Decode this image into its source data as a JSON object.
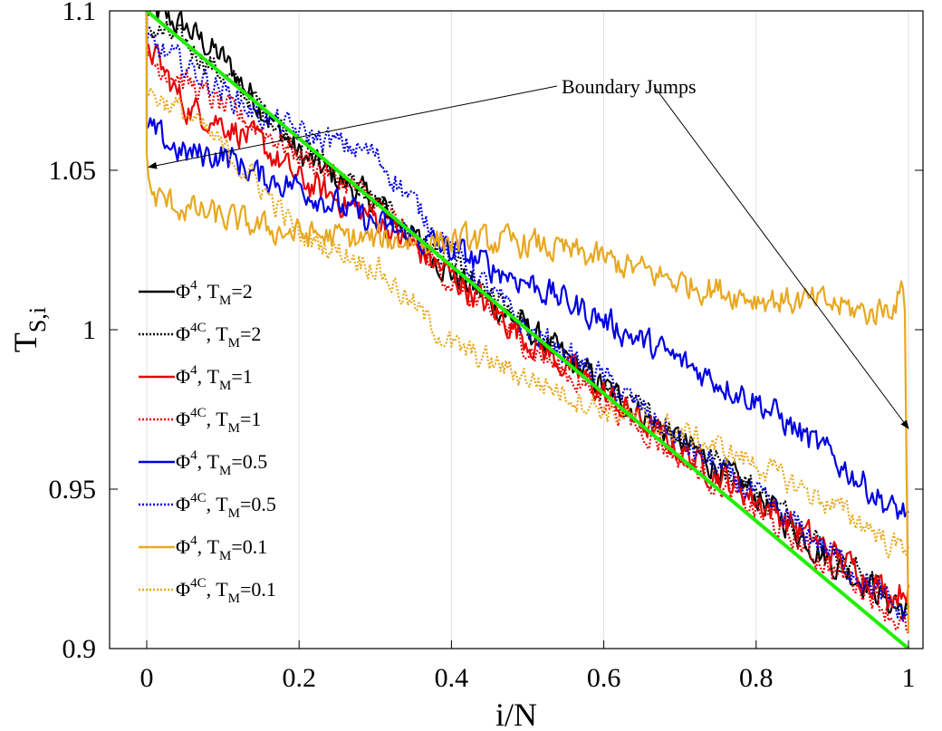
{
  "chart_data": {
    "type": "line",
    "xlabel": "i/N",
    "ylabel": {
      "main": "T",
      "sub": "S,i"
    },
    "xlim": [
      -0.05,
      1.0
    ],
    "ylim": [
      0.9,
      1.1
    ],
    "x_ticks": [
      "0",
      "0.2",
      "0.4",
      "0.6",
      "0.8",
      "1"
    ],
    "x_tick_values": [
      0,
      0.2,
      0.4,
      0.6,
      0.8,
      1.0
    ],
    "y_ticks": [
      "0.9",
      "0.95",
      "1",
      "1.05",
      "1.1"
    ],
    "y_tick_values": [
      0.9,
      0.95,
      1.0,
      1.05,
      1.1
    ],
    "grid": "vertical",
    "legend_position": "left",
    "annotation": {
      "text": "Boundary Jumps",
      "targets": [
        [
          0.0,
          1.051
        ],
        [
          1.0,
          0.969
        ]
      ]
    },
    "reference_line": {
      "color": "#22ee00",
      "x": [
        0,
        1
      ],
      "y": [
        1.1,
        0.9
      ]
    },
    "series": [
      {
        "name": "Φ4, TM=2",
        "sym": "Φ",
        "sup": "4",
        "tm": "2",
        "color": "#000000",
        "dash": "solid",
        "x": [
          0,
          0.05,
          0.1,
          0.15,
          0.2,
          0.3,
          0.4,
          0.5,
          0.6,
          0.7,
          0.8,
          0.9,
          0.95,
          0.98,
          1.0
        ],
        "y": [
          1.1,
          1.095,
          1.085,
          1.07,
          1.055,
          1.04,
          1.018,
          1.0,
          0.982,
          0.965,
          0.948,
          0.927,
          0.92,
          0.913,
          0.913
        ]
      },
      {
        "name": "Φ4C, TM=2",
        "sym": "Φ",
        "sup": "4C",
        "tm": "2",
        "color": "#000000",
        "dash": "dotted",
        "x": [
          0,
          0.05,
          0.1,
          0.15,
          0.2,
          0.3,
          0.4,
          0.5,
          0.6,
          0.7,
          0.8,
          0.9,
          0.95,
          0.98,
          1.0
        ],
        "y": [
          1.095,
          1.09,
          1.08,
          1.07,
          1.058,
          1.04,
          1.02,
          1.0,
          0.982,
          0.967,
          0.95,
          0.93,
          0.922,
          0.915,
          0.912
        ]
      },
      {
        "name": "Φ4, TM=1",
        "sym": "Φ",
        "sup": "4",
        "tm": "1",
        "color": "#e80000",
        "dash": "solid",
        "x": [
          0,
          0.05,
          0.1,
          0.15,
          0.2,
          0.3,
          0.4,
          0.5,
          0.6,
          0.7,
          0.8,
          0.9,
          0.95,
          0.98,
          1.0
        ],
        "y": [
          1.09,
          1.07,
          1.065,
          1.058,
          1.047,
          1.035,
          1.017,
          0.997,
          0.98,
          0.962,
          0.947,
          0.93,
          0.922,
          0.917,
          0.92
        ]
      },
      {
        "name": "Φ4C, TM=1",
        "sym": "Φ",
        "sup": "4C",
        "tm": "1",
        "color": "#e80000",
        "dash": "dotted",
        "x": [
          0,
          0.05,
          0.1,
          0.15,
          0.2,
          0.3,
          0.4,
          0.5,
          0.6,
          0.7,
          0.8,
          0.9,
          0.95,
          0.98,
          1.0
        ],
        "y": [
          1.085,
          1.078,
          1.07,
          1.063,
          1.055,
          1.04,
          1.015,
          0.995,
          0.978,
          0.96,
          0.943,
          0.925,
          0.918,
          0.91,
          0.905
        ]
      },
      {
        "name": "Φ4, TM=0.5",
        "sym": "Φ",
        "sup": "4",
        "tm": "0.5",
        "color": "#0000e0",
        "dash": "solid",
        "x": [
          0,
          0.05,
          0.1,
          0.15,
          0.2,
          0.3,
          0.4,
          0.5,
          0.6,
          0.7,
          0.8,
          0.9,
          0.95,
          0.98,
          1.0
        ],
        "y": [
          1.063,
          1.055,
          1.055,
          1.048,
          1.045,
          1.033,
          1.025,
          1.015,
          1.003,
          0.99,
          0.978,
          0.96,
          0.95,
          0.943,
          0.943
        ]
      },
      {
        "name": "Φ4C, TM=0.5",
        "sym": "Φ",
        "sup": "4C",
        "tm": "0.5",
        "color": "#0000e0",
        "dash": "dotted",
        "x": [
          0,
          0.05,
          0.1,
          0.15,
          0.2,
          0.3,
          0.4,
          0.5,
          0.6,
          0.7,
          0.8,
          0.9,
          0.95,
          0.98,
          1.0
        ],
        "y": [
          1.09,
          1.083,
          1.075,
          1.067,
          1.062,
          1.055,
          1.025,
          1.0,
          0.985,
          0.965,
          0.948,
          0.93,
          0.92,
          0.913,
          0.91
        ]
      },
      {
        "name": "Φ4, TM=0.1",
        "sym": "Φ",
        "sup": "4",
        "tm": "0.1",
        "color": "#e8a820",
        "dash": "solid",
        "x": [
          0,
          0.005,
          0.05,
          0.1,
          0.15,
          0.2,
          0.3,
          0.4,
          0.5,
          0.6,
          0.7,
          0.8,
          0.9,
          0.95,
          0.98,
          0.995,
          1.0
        ],
        "y": [
          1.055,
          1.042,
          1.038,
          1.035,
          1.032,
          1.03,
          1.028,
          1.028,
          1.027,
          1.022,
          1.015,
          1.01,
          1.008,
          1.005,
          1.008,
          1.013,
          0.905
        ]
      },
      {
        "name": "Φ4C, TM=0.1",
        "sym": "Φ",
        "sup": "4C",
        "tm": "0.1",
        "color": "#e8a820",
        "dash": "dotted",
        "x": [
          0,
          0.05,
          0.1,
          0.15,
          0.2,
          0.3,
          0.4,
          0.5,
          0.6,
          0.7,
          0.8,
          0.9,
          0.95,
          0.98,
          1.0
        ],
        "y": [
          1.075,
          1.068,
          1.057,
          1.045,
          1.03,
          1.02,
          0.995,
          0.985,
          0.975,
          0.968,
          0.958,
          0.945,
          0.938,
          0.932,
          0.932
        ]
      }
    ]
  }
}
